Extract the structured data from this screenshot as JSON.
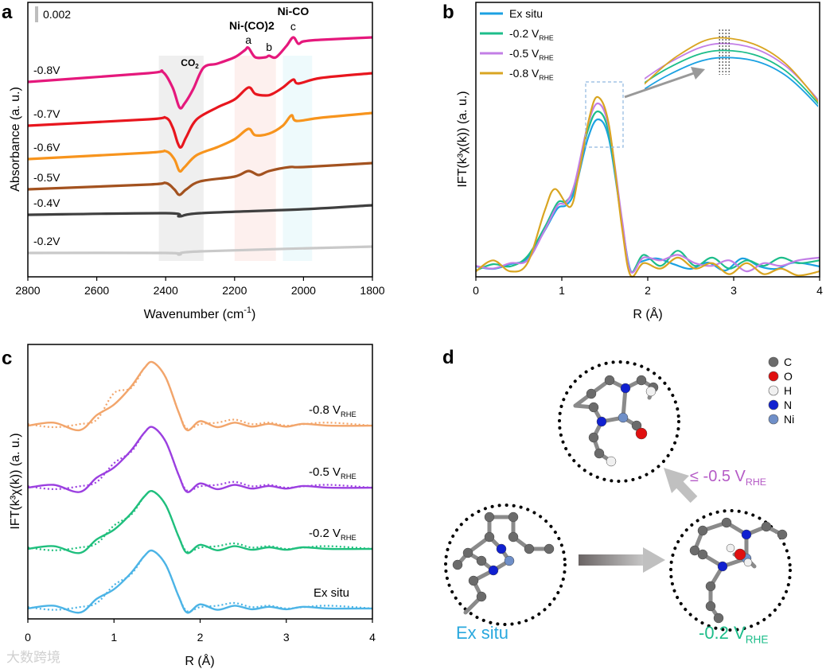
{
  "panels": {
    "a": "a",
    "b": "b",
    "c": "c",
    "d": "d"
  },
  "chart_data": [
    {
      "id": "a",
      "type": "line",
      "title": "",
      "xlabel": "Wavenumber (cm",
      "xlabel_sup": "-1",
      "xlabel_end": ")",
      "ylabel": "Absorbance (a. u.)",
      "xlim": [
        2800,
        1800
      ],
      "ylim_mAU": [
        0,
        34.5
      ],
      "xticks": [
        "2800",
        "2600",
        "2400",
        "2200",
        "2000",
        "1800"
      ],
      "xtick_values": [
        2800,
        2600,
        2400,
        2200,
        2000,
        1800
      ],
      "scale_bar": {
        "label": "0.002",
        "value_mAU": 2
      },
      "annotations": [
        {
          "text": "CO",
          "sub": "2",
          "x": 2330
        },
        {
          "text": "Ni-(CO)2",
          "x": 2160
        },
        {
          "text": "a",
          "x": 2160
        },
        {
          "text": "b",
          "x": 2100
        },
        {
          "text": "Ni-CO",
          "x": 2030
        },
        {
          "text": "c",
          "x": 2030
        }
      ],
      "bands": [
        {
          "from": 2420,
          "to": 2290,
          "color": "#efefef"
        },
        {
          "from": 2200,
          "to": 2080,
          "color": "#fdf0ee"
        },
        {
          "from": 2060,
          "to": 1975,
          "color": "#eefafc"
        }
      ],
      "series": [
        {
          "name": "-0.8V",
          "color": "#e5187c",
          "points": [
            [
              2800,
              24.5
            ],
            [
              2450,
              25.6
            ],
            [
              2410,
              25.8
            ],
            [
              2380,
              23.8
            ],
            [
              2360,
              21.3
            ],
            [
              2345,
              21.8
            ],
            [
              2320,
              23.6
            ],
            [
              2290,
              26.3
            ],
            [
              2250,
              26.8
            ],
            [
              2200,
              27.6
            ],
            [
              2170,
              28.5
            ],
            [
              2160,
              28.8
            ],
            [
              2140,
              27.6
            ],
            [
              2110,
              27.6
            ],
            [
              2100,
              27.8
            ],
            [
              2080,
              27.6
            ],
            [
              2050,
              29.0
            ],
            [
              2030,
              30.1
            ],
            [
              2015,
              29.3
            ],
            [
              2000,
              29.6
            ],
            [
              1950,
              29.8
            ],
            [
              1800,
              30.1
            ]
          ]
        },
        {
          "name": "-0.7V",
          "color": "#e8161e",
          "points": [
            [
              2800,
              19.0
            ],
            [
              2450,
              19.8
            ],
            [
              2400,
              20.0
            ],
            [
              2380,
              18.8
            ],
            [
              2365,
              16.8
            ],
            [
              2355,
              16.3
            ],
            [
              2340,
              17.6
            ],
            [
              2310,
              19.8
            ],
            [
              2250,
              21.3
            ],
            [
              2200,
              22.3
            ],
            [
              2160,
              23.8
            ],
            [
              2140,
              23.0
            ],
            [
              2110,
              22.8
            ],
            [
              2090,
              23.0
            ],
            [
              2060,
              23.8
            ],
            [
              2030,
              24.8
            ],
            [
              2015,
              24.3
            ],
            [
              1950,
              25.0
            ],
            [
              1800,
              25.6
            ]
          ]
        },
        {
          "name": "-0.6V",
          "color": "#f7941d",
          "points": [
            [
              2800,
              14.8
            ],
            [
              2450,
              15.6
            ],
            [
              2400,
              15.8
            ],
            [
              2375,
              14.8
            ],
            [
              2360,
              13.3
            ],
            [
              2345,
              13.8
            ],
            [
              2310,
              15.3
            ],
            [
              2250,
              16.3
            ],
            [
              2200,
              17.3
            ],
            [
              2160,
              18.6
            ],
            [
              2140,
              17.8
            ],
            [
              2100,
              18.0
            ],
            [
              2060,
              19.0
            ],
            [
              2035,
              20.3
            ],
            [
              2020,
              19.6
            ],
            [
              1950,
              20.0
            ],
            [
              1800,
              20.6
            ]
          ]
        },
        {
          "name": "-0.5V",
          "color": "#a3521f",
          "points": [
            [
              2800,
              11.0
            ],
            [
              2450,
              11.6
            ],
            [
              2400,
              11.8
            ],
            [
              2375,
              11.0
            ],
            [
              2360,
              10.3
            ],
            [
              2340,
              11.0
            ],
            [
              2300,
              12.0
            ],
            [
              2200,
              12.6
            ],
            [
              2160,
              13.3
            ],
            [
              2130,
              12.8
            ],
            [
              2100,
              13.3
            ],
            [
              2040,
              13.8
            ],
            [
              2000,
              13.8
            ],
            [
              1800,
              14.3
            ]
          ]
        },
        {
          "name": "-0.4V",
          "color": "#3f3f3f",
          "points": [
            [
              2800,
              7.8
            ],
            [
              2400,
              8.0
            ],
            [
              2360,
              7.6
            ],
            [
              2300,
              8.0
            ],
            [
              2000,
              8.5
            ],
            [
              1800,
              9.0
            ]
          ]
        },
        {
          "name": "-0.2V",
          "color": "#c9c9c9",
          "points": [
            [
              2800,
              3.0
            ],
            [
              2400,
              3.0
            ],
            [
              2360,
              2.8
            ],
            [
              2300,
              3.2
            ],
            [
              1800,
              3.8
            ]
          ]
        }
      ]
    },
    {
      "id": "b",
      "type": "line",
      "xlabel": "R (Å)",
      "ylabel": "IFT(k³χ(k)) (a. u.)",
      "xlim": [
        0,
        4
      ],
      "ylim": [
        0,
        100
      ],
      "xticks": [
        "0",
        "1",
        "2",
        "3",
        "4"
      ],
      "legend": "top-left",
      "inset": {
        "xlim": [
          1.25,
          1.62
        ]
      },
      "series": [
        {
          "name": "Ex situ",
          "sub": "",
          "color": "#1ba1e2",
          "points": [
            [
              0,
              3.8
            ],
            [
              0.2,
              2.9
            ],
            [
              0.4,
              4.6
            ],
            [
              0.6,
              6.7
            ],
            [
              0.8,
              16.8
            ],
            [
              0.95,
              24.9
            ],
            [
              1.05,
              26.1
            ],
            [
              1.15,
              31.3
            ],
            [
              1.3,
              50.1
            ],
            [
              1.42,
              57.4
            ],
            [
              1.55,
              50.1
            ],
            [
              1.7,
              19.7
            ],
            [
              1.8,
              2.3
            ],
            [
              1.9,
              5.2
            ],
            [
              2.1,
              6.7
            ],
            [
              2.3,
              4.6
            ],
            [
              2.5,
              2.9
            ],
            [
              2.7,
              5.2
            ],
            [
              2.9,
              2.3
            ],
            [
              3.1,
              6.7
            ],
            [
              3.3,
              3.8
            ],
            [
              3.5,
              2.9
            ],
            [
              3.7,
              5.2
            ],
            [
              4,
              3.8
            ]
          ]
        },
        {
          "name": "-0.2 V",
          "sub": "RHE",
          "color": "#1dbd8a",
          "points": [
            [
              0,
              2.3
            ],
            [
              0.2,
              4.6
            ],
            [
              0.4,
              3.8
            ],
            [
              0.6,
              7.5
            ],
            [
              0.8,
              18
            ],
            [
              0.95,
              27
            ],
            [
              1.05,
              27.5
            ],
            [
              1.15,
              33
            ],
            [
              1.3,
              53
            ],
            [
              1.42,
              60.3
            ],
            [
              1.55,
              52
            ],
            [
              1.7,
              20
            ],
            [
              1.8,
              2
            ],
            [
              1.95,
              8
            ],
            [
              2.15,
              4
            ],
            [
              2.35,
              9.5
            ],
            [
              2.55,
              4
            ],
            [
              2.75,
              7
            ],
            [
              2.95,
              3
            ],
            [
              3.15,
              6
            ],
            [
              3.35,
              4
            ],
            [
              3.55,
              7
            ],
            [
              3.75,
              5
            ],
            [
              4,
              6
            ]
          ]
        },
        {
          "name": "-0.5 V",
          "sub": "RHE",
          "color": "#c27ee6",
          "points": [
            [
              0,
              4
            ],
            [
              0.2,
              3
            ],
            [
              0.4,
              5
            ],
            [
              0.6,
              6
            ],
            [
              0.8,
              17
            ],
            [
              0.95,
              26
            ],
            [
              1.05,
              27
            ],
            [
              1.15,
              34
            ],
            [
              1.3,
              55
            ],
            [
              1.42,
              63.2
            ],
            [
              1.55,
              54
            ],
            [
              1.7,
              21
            ],
            [
              1.8,
              2
            ],
            [
              1.95,
              7
            ],
            [
              2.15,
              6
            ],
            [
              2.35,
              8
            ],
            [
              2.55,
              5
            ],
            [
              2.75,
              4
            ],
            [
              2.95,
              6
            ],
            [
              3.15,
              2
            ],
            [
              3.35,
              5
            ],
            [
              3.55,
              4
            ],
            [
              3.75,
              6
            ],
            [
              4,
              7
            ]
          ]
        },
        {
          "name": "-0.8 V",
          "sub": "RHE",
          "color": "#d9a521",
          "points": [
            [
              0,
              2
            ],
            [
              0.2,
              6
            ],
            [
              0.4,
              2
            ],
            [
              0.6,
              5
            ],
            [
              0.8,
              24
            ],
            [
              0.92,
              32
            ],
            [
              1.1,
              25.5
            ],
            [
              1.2,
              38
            ],
            [
              1.32,
              58
            ],
            [
              1.42,
              65.5
            ],
            [
              1.55,
              55
            ],
            [
              1.7,
              18
            ],
            [
              1.8,
              0.5
            ],
            [
              1.95,
              5
            ],
            [
              2.15,
              3
            ],
            [
              2.35,
              7
            ],
            [
              2.55,
              3
            ],
            [
              2.75,
              5
            ],
            [
              2.95,
              1
            ],
            [
              3.15,
              5
            ],
            [
              3.35,
              1
            ],
            [
              3.55,
              3
            ],
            [
              3.75,
              0.5
            ],
            [
              4,
              2
            ]
          ]
        }
      ]
    },
    {
      "id": "c",
      "type": "line",
      "xlabel": "R (Å)",
      "ylabel": "IFT(k³χ(k)) (a. u.)",
      "xlim": [
        0,
        4
      ],
      "ylim": [
        0,
        100
      ],
      "xticks": [
        "0",
        "1",
        "2",
        "3",
        "4"
      ],
      "line_styles": {
        "experiment": "solid",
        "fit": "dotted"
      },
      "exp_shape": [
        [
          0,
          0
        ],
        [
          0.3,
          1
        ],
        [
          0.6,
          -1.5
        ],
        [
          0.8,
          3.5
        ],
        [
          1.0,
          7
        ],
        [
          1.2,
          13
        ],
        [
          1.35,
          19
        ],
        [
          1.45,
          21
        ],
        [
          1.6,
          16
        ],
        [
          1.75,
          4.5
        ],
        [
          1.85,
          -1.5
        ],
        [
          2.0,
          1.5
        ],
        [
          2.2,
          -0.5
        ],
        [
          2.4,
          1
        ],
        [
          2.6,
          -0.3
        ],
        [
          2.8,
          0.6
        ],
        [
          3.0,
          -0.3
        ],
        [
          3.2,
          0.6
        ],
        [
          3.5,
          0
        ],
        [
          4,
          0
        ]
      ],
      "fit_shape": [
        [
          0,
          0.5
        ],
        [
          0.3,
          -0.5
        ],
        [
          0.6,
          0.5
        ],
        [
          0.8,
          2
        ],
        [
          1.0,
          8.5
        ],
        [
          1.2,
          12.5
        ],
        [
          1.35,
          19
        ],
        [
          1.45,
          21
        ],
        [
          1.6,
          16
        ],
        [
          1.75,
          4.5
        ],
        [
          1.85,
          -1
        ],
        [
          2.0,
          0.5
        ],
        [
          2.2,
          1
        ],
        [
          2.4,
          2
        ],
        [
          2.6,
          0.5
        ],
        [
          2.8,
          1
        ],
        [
          3.0,
          0
        ],
        [
          3.2,
          0.5
        ],
        [
          3.5,
          1
        ],
        [
          4,
          0
        ]
      ],
      "series": [
        {
          "name": "-0.8 V",
          "sub": "RHE",
          "color": "#f2a56b",
          "offset": 70.4,
          "scale": 1.1
        },
        {
          "name": "-0.5 V",
          "sub": "RHE",
          "color": "#9b3fe0",
          "offset": 47.8,
          "scale": 1.05
        },
        {
          "name": "-0.2 V",
          "sub": "RHE",
          "color": "#1fbf7d",
          "offset": 25.5,
          "scale": 1.0
        },
        {
          "name": "Ex situ",
          "sub": "",
          "color": "#4cb4e6",
          "offset": 3.8,
          "scale": 1.0
        }
      ]
    }
  ],
  "panel_d": {
    "legend": [
      {
        "label": "C",
        "color": "#6b6b6b"
      },
      {
        "label": "O",
        "color": "#e01010"
      },
      {
        "label": "H",
        "color": "#f0f0f0"
      },
      {
        "label": "N",
        "color": "#1020d0"
      },
      {
        "label": "Ni",
        "color": "#6f8fc8"
      }
    ],
    "states": {
      "ex_situ": {
        "label": "Ex situ",
        "sub": "",
        "color": "#2aa8de"
      },
      "v02": {
        "label": "-0.2 V",
        "sub": "RHE",
        "color": "#1dbd8a"
      },
      "v05": {
        "label": "≤ -0.5 V",
        "sub": "RHE",
        "color": "#b55bc6"
      }
    }
  },
  "watermark": "大数跨境"
}
